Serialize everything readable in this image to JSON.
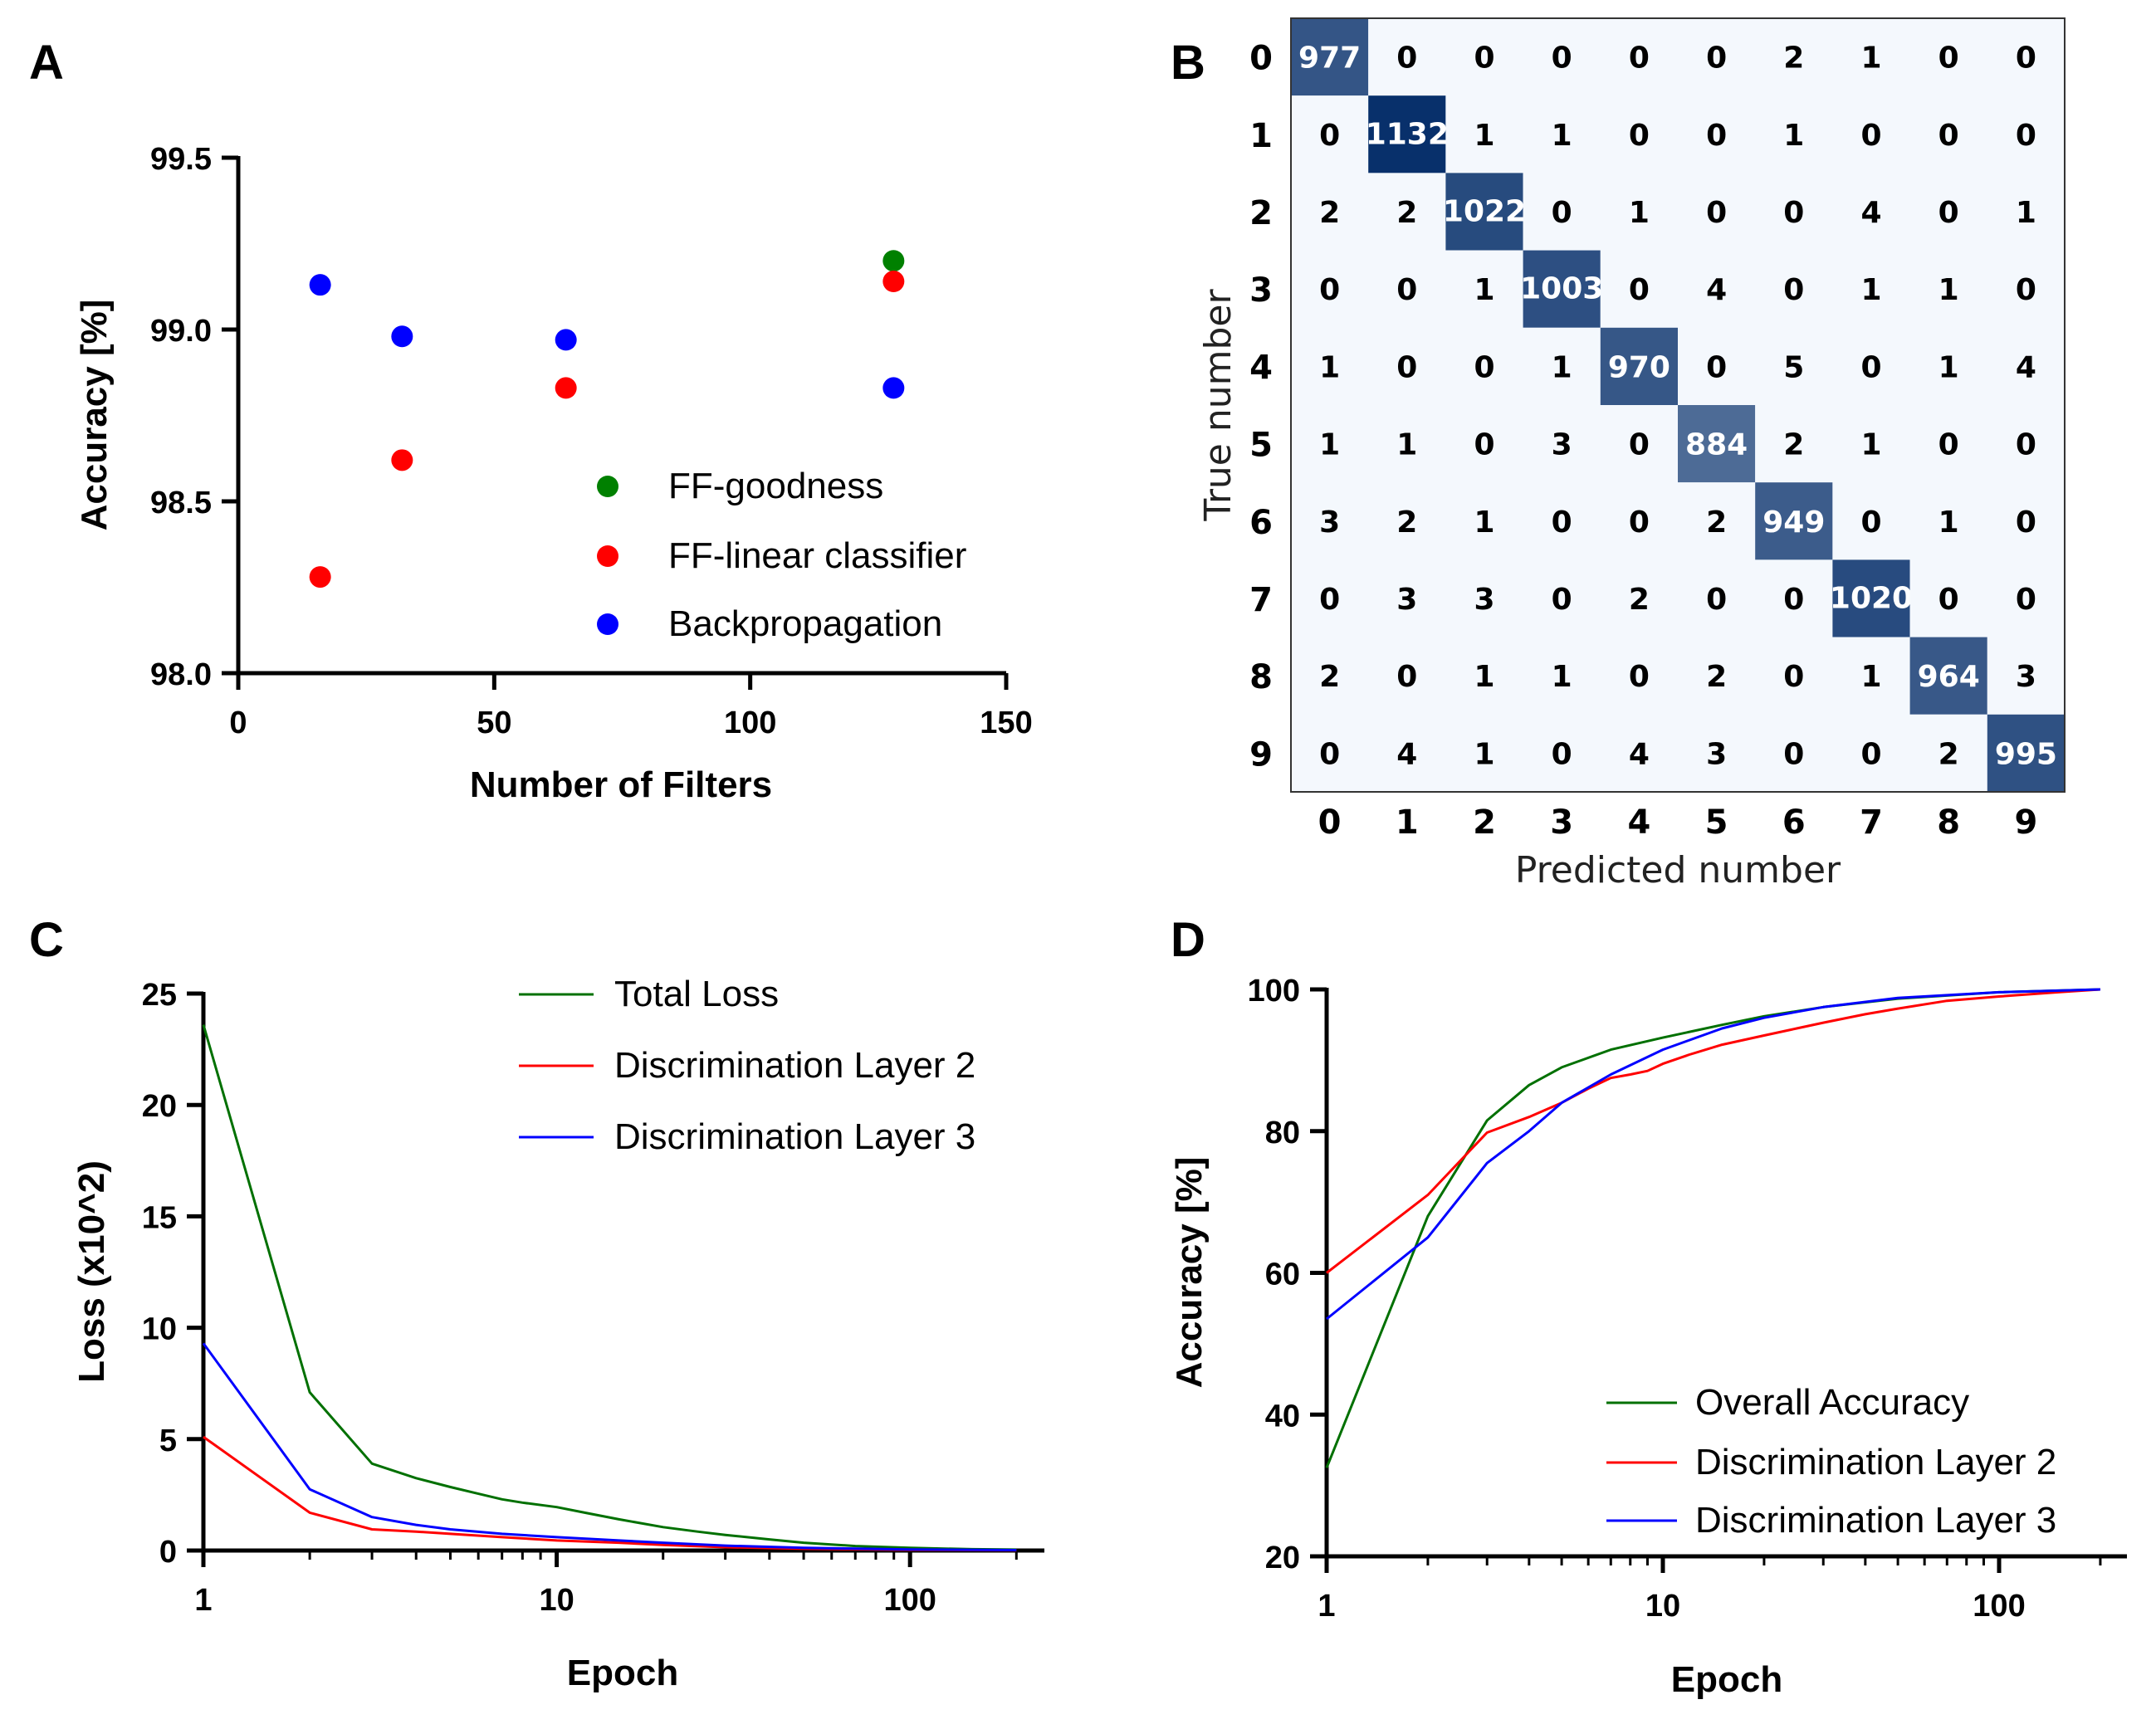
{
  "chart_data": [
    {
      "panel": "A",
      "type": "scatter",
      "xlabel": "Number of Filters",
      "ylabel": "Accuracy [%]",
      "xlim": [
        0,
        150
      ],
      "ylim": [
        98.0,
        99.5
      ],
      "xticks": [
        "0",
        "50",
        "100",
        "150"
      ],
      "yticks": [
        "98.0",
        "98.5",
        "99.0",
        "99.5"
      ],
      "legend_position": "bottom-right",
      "series": [
        {
          "name": "FF-goodness",
          "color": "#008000",
          "x": [
            128
          ],
          "y": [
            99.2
          ]
        },
        {
          "name": "FF-linear classifier",
          "color": "#ff0000",
          "x": [
            16,
            32,
            64,
            128
          ],
          "y": [
            98.28,
            98.62,
            98.83,
            99.14
          ]
        },
        {
          "name": "Backpropagation",
          "color": "#0000ff",
          "x": [
            16,
            32,
            64,
            128
          ],
          "y": [
            99.13,
            98.98,
            98.97,
            98.83
          ]
        }
      ]
    },
    {
      "panel": "B",
      "type": "heatmap",
      "xlabel": "Predicted number",
      "ylabel": "True number",
      "labels": [
        "0",
        "1",
        "2",
        "3",
        "4",
        "5",
        "6",
        "7",
        "8",
        "9"
      ],
      "matrix": [
        [
          977,
          0,
          0,
          0,
          0,
          0,
          2,
          1,
          0,
          0
        ],
        [
          0,
          1132,
          1,
          1,
          0,
          0,
          1,
          0,
          0,
          0
        ],
        [
          2,
          2,
          1022,
          0,
          1,
          0,
          0,
          4,
          0,
          1
        ],
        [
          0,
          0,
          1,
          1003,
          0,
          4,
          0,
          1,
          1,
          0
        ],
        [
          1,
          0,
          0,
          1,
          970,
          0,
          5,
          0,
          1,
          4
        ],
        [
          1,
          1,
          0,
          3,
          0,
          884,
          2,
          1,
          0,
          0
        ],
        [
          3,
          2,
          1,
          0,
          0,
          2,
          949,
          0,
          1,
          0
        ],
        [
          0,
          3,
          3,
          0,
          2,
          0,
          0,
          1020,
          0,
          0
        ],
        [
          2,
          0,
          1,
          1,
          0,
          2,
          0,
          1,
          964,
          3
        ],
        [
          0,
          4,
          1,
          0,
          4,
          3,
          0,
          0,
          2,
          995
        ]
      ]
    },
    {
      "panel": "C",
      "type": "line",
      "xscale": "log",
      "xlabel": "Epoch",
      "ylabel": "Loss (x10^2)",
      "xlim": [
        1,
        240
      ],
      "ylim": [
        0,
        25
      ],
      "xticks": [
        "1",
        "10",
        "100"
      ],
      "yticks": [
        "0",
        "5",
        "10",
        "15",
        "20",
        "25"
      ],
      "legend_position": "top-right",
      "series": [
        {
          "name": "Total Loss",
          "color": "#007000",
          "x": [
            1,
            2,
            3,
            4,
            5,
            6,
            7,
            8,
            10,
            12,
            15,
            20,
            25,
            30,
            40,
            50,
            70,
            100,
            150,
            200
          ],
          "y": [
            23.6,
            7.1,
            3.9,
            3.25,
            2.85,
            2.55,
            2.3,
            2.15,
            1.95,
            1.7,
            1.4,
            1.05,
            0.85,
            0.7,
            0.5,
            0.35,
            0.2,
            0.12,
            0.06,
            0.04
          ]
        },
        {
          "name": "Discrimination Layer 2",
          "color": "#ff0000",
          "x": [
            1,
            2,
            3,
            4,
            5,
            7,
            10,
            15,
            20,
            30,
            50,
            100,
            200
          ],
          "y": [
            5.1,
            1.7,
            0.95,
            0.85,
            0.75,
            0.6,
            0.45,
            0.35,
            0.25,
            0.15,
            0.08,
            0.03,
            0.01
          ]
        },
        {
          "name": "Discrimination Layer 3",
          "color": "#0000ff",
          "x": [
            1,
            2,
            3,
            4,
            5,
            7,
            10,
            15,
            20,
            30,
            50,
            100,
            200
          ],
          "y": [
            9.3,
            2.75,
            1.5,
            1.15,
            0.95,
            0.75,
            0.6,
            0.45,
            0.35,
            0.22,
            0.12,
            0.05,
            0.02
          ]
        }
      ]
    },
    {
      "panel": "D",
      "type": "line",
      "xscale": "log",
      "xlabel": "Epoch",
      "ylabel": "Accuracy [%]",
      "xlim": [
        1,
        240
      ],
      "ylim": [
        20,
        100
      ],
      "xticks": [
        "1",
        "10",
        "100"
      ],
      "yticks": [
        "20",
        "40",
        "60",
        "80",
        "100"
      ],
      "legend_position": "bottom-right",
      "series": [
        {
          "name": "Overall Accuracy",
          "color": "#007000",
          "x": [
            1,
            2,
            3,
            4,
            5,
            7,
            10,
            15,
            20,
            30,
            50,
            100,
            200
          ],
          "y": [
            32.5,
            68,
            81.5,
            86.5,
            89,
            91.5,
            93.2,
            95,
            96.2,
            97.5,
            98.7,
            99.6,
            100
          ]
        },
        {
          "name": "Discrimination Layer 2",
          "color": "#ff0000",
          "x": [
            1,
            2,
            3,
            4,
            5,
            6,
            7,
            8,
            9,
            10,
            12,
            15,
            20,
            25,
            30,
            40,
            50,
            70,
            100,
            150,
            200
          ],
          "y": [
            60,
            71,
            79.8,
            82,
            84,
            86,
            87.5,
            88,
            88.5,
            89.5,
            90.8,
            92.2,
            93.5,
            94.5,
            95.3,
            96.5,
            97.3,
            98.4,
            99,
            99.6,
            100
          ]
        },
        {
          "name": "Discrimination Layer 3",
          "color": "#0000ff",
          "x": [
            1,
            2,
            3,
            4,
            5,
            7,
            10,
            15,
            20,
            30,
            50,
            100,
            200
          ],
          "y": [
            53.5,
            65,
            75.5,
            80,
            84,
            88,
            91.5,
            94.5,
            96,
            97.5,
            98.8,
            99.6,
            100
          ]
        }
      ]
    }
  ]
}
